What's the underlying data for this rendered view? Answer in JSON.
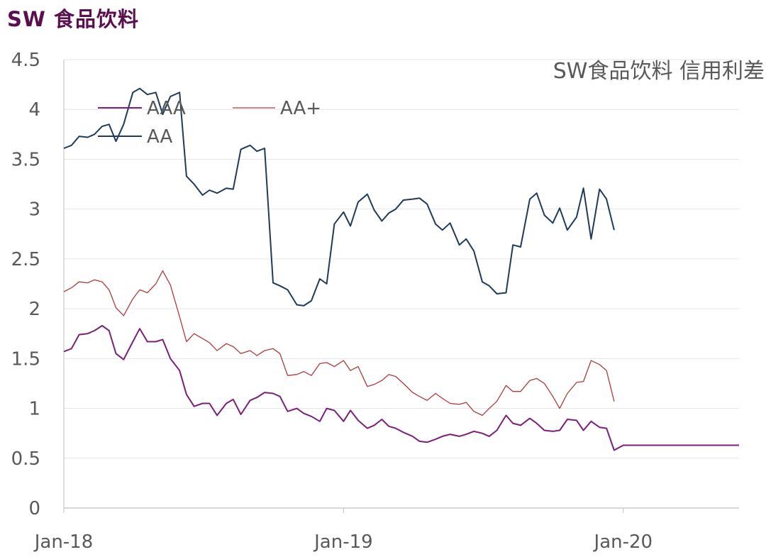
{
  "header": {
    "title": "SW 食品饮料"
  },
  "chart_data": {
    "type": "line",
    "title": "SW食品饮料 信用利差",
    "xlabel": "",
    "ylabel": "",
    "ylim": [
      0,
      4.5
    ],
    "yticks": [
      0,
      0.5,
      1,
      1.5,
      2,
      2.5,
      3,
      3.5,
      4,
      4.5
    ],
    "ytick_labels": [
      "0",
      "0.5",
      "1",
      "1.5",
      "2",
      "2.5",
      "3",
      "3.5",
      "4",
      "4.5"
    ],
    "xlim": [
      "2018-01-01",
      "2020-05-31"
    ],
    "xticks": [
      "2018-01-01",
      "2019-01-01",
      "2020-01-01"
    ],
    "xtick_labels": [
      "Jan-18",
      "Jan-19",
      "Jan-20"
    ],
    "legend": "top-left",
    "grid": "horizontal",
    "series": [
      {
        "name": "AAA",
        "color": "#7b1f7a",
        "width": 2,
        "x": [
          "2018-01-01",
          "2018-01-11",
          "2018-01-21",
          "2018-02-01",
          "2018-02-10",
          "2018-02-20",
          "2018-03-01",
          "2018-03-10",
          "2018-03-20",
          "2018-04-01",
          "2018-04-10",
          "2018-04-20",
          "2018-05-01",
          "2018-05-10",
          "2018-05-20",
          "2018-06-01",
          "2018-06-10",
          "2018-06-20",
          "2018-07-01",
          "2018-07-10",
          "2018-07-20",
          "2018-08-01",
          "2018-08-10",
          "2018-08-20",
          "2018-09-01",
          "2018-09-10",
          "2018-09-20",
          "2018-10-01",
          "2018-10-10",
          "2018-10-20",
          "2018-11-01",
          "2018-11-10",
          "2018-11-20",
          "2018-12-01",
          "2018-12-10",
          "2018-12-20",
          "2019-01-01",
          "2019-01-10",
          "2019-01-20",
          "2019-02-01",
          "2019-02-10",
          "2019-02-20",
          "2019-03-01",
          "2019-03-10",
          "2019-03-20",
          "2019-04-01",
          "2019-04-10",
          "2019-04-20",
          "2019-05-01",
          "2019-05-10",
          "2019-05-20",
          "2019-06-01",
          "2019-06-10",
          "2019-06-20",
          "2019-07-01",
          "2019-07-10",
          "2019-07-20",
          "2019-08-01",
          "2019-08-10",
          "2019-08-20",
          "2019-09-01",
          "2019-09-10",
          "2019-09-20",
          "2019-10-01",
          "2019-10-10",
          "2019-10-20",
          "2019-11-01",
          "2019-11-10",
          "2019-11-20",
          "2019-12-01",
          "2019-12-10",
          "2019-12-20",
          "2020-01-01",
          "2020-01-10",
          "2020-01-20",
          "2020-02-01",
          "2020-02-10",
          "2020-02-20",
          "2020-03-01",
          "2020-03-10",
          "2020-03-20",
          "2020-04-01",
          "2020-04-10",
          "2020-04-20",
          "2020-05-01",
          "2020-05-10",
          "2020-05-20",
          "2020-05-31"
        ],
        "values": [
          1.57,
          1.6,
          1.74,
          1.75,
          1.78,
          1.83,
          1.78,
          1.55,
          1.49,
          1.67,
          1.8,
          1.67,
          1.67,
          1.69,
          1.5,
          1.38,
          1.14,
          1.02,
          1.05,
          1.05,
          0.93,
          1.05,
          1.09,
          0.94,
          1.08,
          1.11,
          1.16,
          1.15,
          1.12,
          0.97,
          1.0,
          0.95,
          0.92,
          0.87,
          1.0,
          0.98,
          0.87,
          0.98,
          0.88,
          0.8,
          0.83,
          0.89,
          0.82,
          0.8,
          0.76,
          0.72,
          0.67,
          0.66,
          0.69,
          0.72,
          0.74,
          0.72,
          0.74,
          0.77,
          0.75,
          0.72,
          0.78,
          0.93,
          0.85,
          0.83,
          0.9,
          0.85,
          0.78,
          0.77,
          0.78,
          0.89,
          0.88,
          0.78,
          0.87,
          0.81,
          0.8,
          0.58,
          0.63,
          0.63,
          0.63,
          0.63,
          0.63,
          0.63,
          0.63,
          0.63,
          0.63,
          0.63,
          0.63,
          0.63,
          0.63,
          0.63,
          0.63,
          0.63
        ]
      },
      {
        "name": "AA+",
        "color": "#b03a3a",
        "width": 1.3,
        "x": [
          "2018-01-01",
          "2018-01-11",
          "2018-01-21",
          "2018-02-01",
          "2018-02-10",
          "2018-02-20",
          "2018-03-01",
          "2018-03-10",
          "2018-03-20",
          "2018-04-01",
          "2018-04-10",
          "2018-04-20",
          "2018-05-01",
          "2018-05-10",
          "2018-05-20",
          "2018-06-01",
          "2018-06-10",
          "2018-06-20",
          "2018-07-01",
          "2018-07-10",
          "2018-07-20",
          "2018-08-01",
          "2018-08-10",
          "2018-08-20",
          "2018-09-01",
          "2018-09-10",
          "2018-09-20",
          "2018-10-01",
          "2018-10-10",
          "2018-10-20",
          "2018-11-01",
          "2018-11-10",
          "2018-11-20",
          "2018-12-01",
          "2018-12-10",
          "2018-12-20",
          "2019-01-01",
          "2019-01-10",
          "2019-01-20",
          "2019-02-01",
          "2019-02-10",
          "2019-02-20",
          "2019-03-01",
          "2019-03-10",
          "2019-03-20",
          "2019-04-01",
          "2019-04-10",
          "2019-04-20",
          "2019-05-01",
          "2019-05-10",
          "2019-05-20",
          "2019-06-01",
          "2019-06-10",
          "2019-06-20",
          "2019-07-01",
          "2019-07-10",
          "2019-07-20",
          "2019-08-01",
          "2019-08-10",
          "2019-08-20",
          "2019-09-01",
          "2019-09-10",
          "2019-09-20",
          "2019-10-01",
          "2019-10-10",
          "2019-10-20",
          "2019-11-01",
          "2019-11-10",
          "2019-11-20",
          "2019-12-01",
          "2019-12-10",
          "2019-12-20"
        ],
        "values": [
          2.17,
          2.21,
          2.27,
          2.26,
          2.29,
          2.27,
          2.19,
          2.01,
          1.93,
          2.1,
          2.19,
          2.16,
          2.25,
          2.38,
          2.24,
          1.92,
          1.67,
          1.75,
          1.7,
          1.66,
          1.58,
          1.65,
          1.62,
          1.55,
          1.58,
          1.53,
          1.58,
          1.6,
          1.55,
          1.33,
          1.34,
          1.37,
          1.33,
          1.45,
          1.46,
          1.42,
          1.48,
          1.38,
          1.42,
          1.22,
          1.24,
          1.28,
          1.34,
          1.32,
          1.25,
          1.16,
          1.12,
          1.08,
          1.15,
          1.1,
          1.05,
          1.04,
          1.06,
          0.97,
          0.93,
          1.0,
          1.07,
          1.23,
          1.17,
          1.17,
          1.28,
          1.3,
          1.25,
          1.12,
          1.0,
          1.15,
          1.26,
          1.27,
          1.48,
          1.44,
          1.38,
          1.07
        ]
      },
      {
        "name": "AA",
        "color": "#1f3b5c",
        "width": 2,
        "x": [
          "2018-01-01",
          "2018-01-11",
          "2018-01-21",
          "2018-02-01",
          "2018-02-10",
          "2018-02-20",
          "2018-03-01",
          "2018-03-10",
          "2018-03-20",
          "2018-04-01",
          "2018-04-10",
          "2018-04-20",
          "2018-05-01",
          "2018-05-10",
          "2018-05-20",
          "2018-06-01",
          "2018-06-10",
          "2018-06-20",
          "2018-07-01",
          "2018-07-10",
          "2018-07-20",
          "2018-08-01",
          "2018-08-10",
          "2018-08-20",
          "2018-09-01",
          "2018-09-10",
          "2018-09-20",
          "2018-10-01",
          "2018-10-10",
          "2018-10-20",
          "2018-11-01",
          "2018-11-10",
          "2018-11-20",
          "2018-12-01",
          "2018-12-10",
          "2018-12-20",
          "2019-01-01",
          "2019-01-10",
          "2019-01-20",
          "2019-02-01",
          "2019-02-10",
          "2019-02-20",
          "2019-03-01",
          "2019-03-10",
          "2019-03-20",
          "2019-04-01",
          "2019-04-10",
          "2019-04-20",
          "2019-05-01",
          "2019-05-10",
          "2019-05-20",
          "2019-06-01",
          "2019-06-10",
          "2019-06-20",
          "2019-07-01",
          "2019-07-10",
          "2019-07-20",
          "2019-08-01",
          "2019-08-10",
          "2019-08-20",
          "2019-09-01",
          "2019-09-10",
          "2019-09-20",
          "2019-10-01",
          "2019-10-10",
          "2019-10-20",
          "2019-11-01",
          "2019-11-10",
          "2019-11-20",
          "2019-12-01",
          "2019-12-10",
          "2019-12-20"
        ],
        "values": [
          3.61,
          3.64,
          3.73,
          3.72,
          3.75,
          3.83,
          3.85,
          3.68,
          3.85,
          4.17,
          4.21,
          4.15,
          4.17,
          3.95,
          4.13,
          4.17,
          3.33,
          3.25,
          3.14,
          3.19,
          3.16,
          3.21,
          3.2,
          3.6,
          3.64,
          3.58,
          3.61,
          2.26,
          2.23,
          2.19,
          2.04,
          2.03,
          2.08,
          2.3,
          2.25,
          2.85,
          2.97,
          2.83,
          3.07,
          3.15,
          2.99,
          2.88,
          2.96,
          3.0,
          3.09,
          3.1,
          3.11,
          3.05,
          2.85,
          2.79,
          2.86,
          2.64,
          2.7,
          2.58,
          2.27,
          2.23,
          2.15,
          2.16,
          2.64,
          2.62,
          3.1,
          3.16,
          2.94,
          2.86,
          3.01,
          2.79,
          2.92,
          3.21,
          2.7,
          3.2,
          3.1,
          2.79
        ]
      }
    ]
  }
}
